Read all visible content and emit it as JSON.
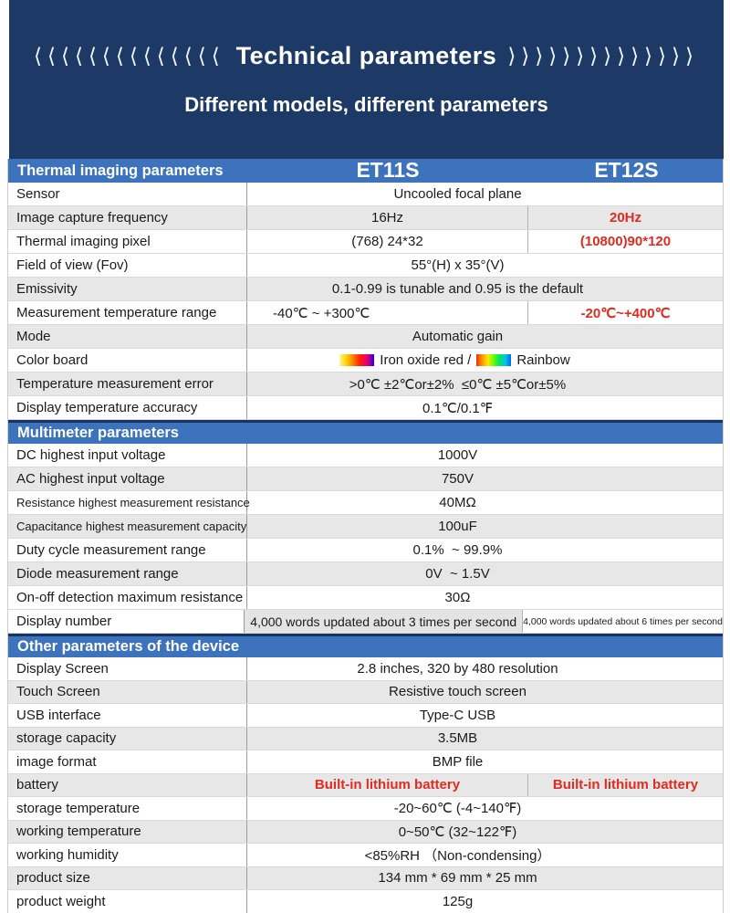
{
  "hero": {
    "chevrons_left": "⟨⟨⟨⟨⟨⟨⟨⟨⟨⟨⟨⟨⟨⟨",
    "title": "Technical parameters",
    "chevrons_right": "⟩⟩⟩⟩⟩⟩⟩⟩⟩⟩⟩⟩⟩⟩",
    "subtitle": "Different models, different parameters"
  },
  "colors": {
    "banner_navy": "#1d3a66",
    "section_bar_blue": "#3d72bc",
    "section_bar_top_line": "#17335e",
    "row_shade_gray": "#e7e7e7",
    "highlight_red": "#e02b20"
  },
  "colorboard": {
    "iron_label": "Iron oxide red /",
    "rainbow_label": "Rainbow",
    "iron_gradient": [
      "#fff3a0",
      "#ffd400",
      "#ff7a00",
      "#ff1e00",
      "#e6007a",
      "#2800d2"
    ],
    "rainbow_gradient": [
      "#ff2800",
      "#ff9600",
      "#ffe600",
      "#64ff00",
      "#00e664",
      "#00c8dc",
      "#0064ff"
    ]
  },
  "table": {
    "columns": [
      "ET11S",
      "ET12S"
    ],
    "sections": [
      {
        "title": "Thermal imaging parameters",
        "show_columns": true,
        "rows": [
          {
            "label": "Sensor",
            "cells": [
              {
                "text": "Uncooled focal plane",
                "col": "full"
              }
            ]
          },
          {
            "label": "Image capture frequency",
            "shade": true,
            "cells": [
              {
                "text": "16Hz",
                "col": "mid"
              },
              {
                "text": "20Hz",
                "col": "right",
                "red": true
              }
            ]
          },
          {
            "label": "Thermal imaging pixel",
            "cells": [
              {
                "text": "(768)  24*32",
                "col": "mid"
              },
              {
                "text": "(10800)90*120",
                "col": "right",
                "red": true
              }
            ]
          },
          {
            "label": "Field of view (Fov)",
            "cells": [
              {
                "text": "55°(H) x 35°(V)",
                "col": "full"
              }
            ]
          },
          {
            "label": "Emissivity",
            "shade": true,
            "cells": [
              {
                "text": "0.1-0.99 is tunable and 0.95 is the default",
                "col": "full"
              }
            ]
          },
          {
            "label": "Measurement temperature range",
            "cells": [
              {
                "text": "-40℃ ~ +300℃",
                "col": "mid",
                "align": "left"
              },
              {
                "text": "-20℃~+400℃",
                "col": "right",
                "red": true
              }
            ]
          },
          {
            "label": "Mode",
            "shade": true,
            "cells": [
              {
                "text": "Automatic gain",
                "col": "full"
              }
            ]
          },
          {
            "label": "Color board",
            "cells": [
              {
                "type": "colorboard",
                "col": "full"
              }
            ]
          },
          {
            "label": "Temperature measurement error",
            "shade": true,
            "cells": [
              {
                "text": ">0℃ ±2℃or±2%  ≤0℃ ±5℃or±5%",
                "col": "full"
              }
            ]
          },
          {
            "label": "Display temperature accuracy",
            "cells": [
              {
                "text": "0.1℃/0.1℉",
                "col": "full"
              }
            ]
          }
        ]
      },
      {
        "title": "Multimeter parameters",
        "rows": [
          {
            "label": "DC highest input voltage",
            "cells": [
              {
                "text": "1000V",
                "col": "full"
              }
            ]
          },
          {
            "label": "AC highest input voltage",
            "shade": true,
            "cells": [
              {
                "text": "750V",
                "col": "full"
              }
            ]
          },
          {
            "label": "Resistance highest measurement resistance",
            "label_small": true,
            "cells": [
              {
                "text": "40MΩ",
                "col": "full"
              }
            ]
          },
          {
            "label": "Capacitance highest measurement capacity",
            "label_small": true,
            "shade": true,
            "cells": [
              {
                "text": "100uF",
                "col": "full"
              }
            ]
          },
          {
            "label": "Duty cycle measurement range",
            "cells": [
              {
                "text": "0.1%  ~ 99.9%",
                "col": "full"
              }
            ]
          },
          {
            "label": "Diode measurement range",
            "shade": true,
            "cells": [
              {
                "text": "0V  ~ 1.5V",
                "col": "full"
              }
            ]
          },
          {
            "label": "On-off detection maximum resistance",
            "cells": [
              {
                "text": "30Ω",
                "col": "full"
              }
            ]
          },
          {
            "label": "Display number",
            "cells": [
              {
                "text": "4,000 words updated about 3 times per second",
                "col": "mid",
                "size": "sm",
                "cell_shade": true
              },
              {
                "text": "4,000 words updated about 6 times per second",
                "col": "right",
                "size": "xs"
              }
            ]
          }
        ]
      },
      {
        "title": "Other parameters of the device",
        "compact": true,
        "rows": [
          {
            "label": "Display Screen",
            "cells": [
              {
                "text": "2.8 inches, 320 by 480 resolution",
                "col": "full"
              }
            ]
          },
          {
            "label": "Touch Screen",
            "shade": true,
            "cells": [
              {
                "text": "Resistive touch screen",
                "col": "full"
              }
            ]
          },
          {
            "label": "USB interface",
            "cells": [
              {
                "text": "Type-C USB",
                "col": "full"
              }
            ]
          },
          {
            "label": "storage capacity",
            "shade": true,
            "cells": [
              {
                "text": "3.5MB",
                "col": "full"
              }
            ]
          },
          {
            "label": "image format",
            "cells": [
              {
                "text": "BMP file",
                "col": "full"
              }
            ]
          },
          {
            "label": "battery",
            "shade": true,
            "cells": [
              {
                "text": "Built-in lithium battery",
                "col": "mid",
                "red": true
              },
              {
                "text": "Built-in lithium battery",
                "col": "right",
                "red": true
              }
            ]
          },
          {
            "label": "storage temperature",
            "cells": [
              {
                "text": "-20~60℃  (-4~140℉)",
                "col": "full"
              }
            ]
          },
          {
            "label": "working temperature",
            "shade": true,
            "cells": [
              {
                "text": "0~50℃  (32~122℉)",
                "col": "full"
              }
            ]
          },
          {
            "label": "working humidity",
            "cells": [
              {
                "text": "<85%RH （Non-condensing）",
                "col": "full"
              }
            ]
          },
          {
            "label": "product size",
            "shade": true,
            "cells": [
              {
                "text": "134 mm * 69 mm * 25 mm",
                "col": "full"
              }
            ]
          },
          {
            "label": "product weight",
            "cells": [
              {
                "text": "125g",
                "col": "full"
              }
            ]
          }
        ]
      }
    ]
  }
}
